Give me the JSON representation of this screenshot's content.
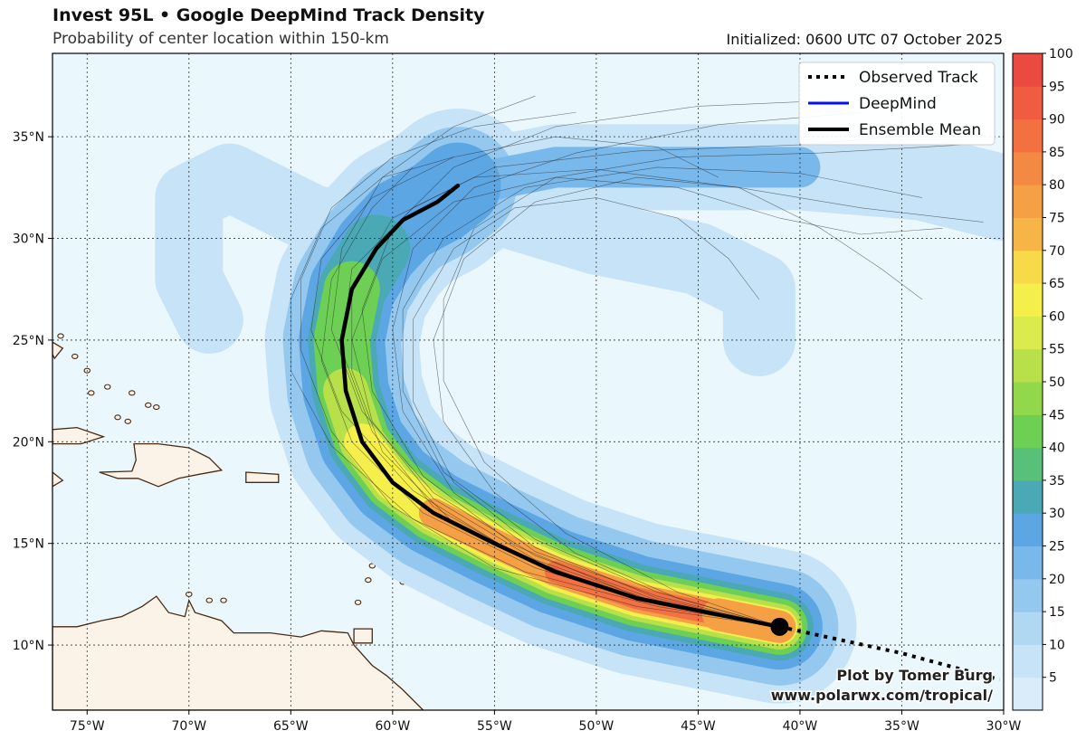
{
  "header": {
    "title": "Invest 95L • Google DeepMind Track Density",
    "subtitle": "Probability of center location within 150-km",
    "initialized": "Initialized: 0600 UTC 07 October 2025"
  },
  "legend": {
    "observed": "Observed Track",
    "deepmind": "DeepMind",
    "ensemble": "Ensemble Mean"
  },
  "credit": {
    "line1": "Plot by Tomer Burg",
    "line2": "www.polarwx.com/tropical/"
  },
  "colors": {
    "ocean": "#eaf7fc",
    "land": "#fbf3e7",
    "coast": "#4a2a12",
    "deepmind": "#0010ff",
    "ensemble": "#000000"
  },
  "map": {
    "lon_range": [
      -76.7,
      -30
    ],
    "lat_range": [
      6.8,
      39.1
    ],
    "lon_ticks": [
      {
        "value": -75,
        "label": "75°W"
      },
      {
        "value": -70,
        "label": "70°W"
      },
      {
        "value": -65,
        "label": "65°W"
      },
      {
        "value": -60,
        "label": "60°W"
      },
      {
        "value": -55,
        "label": "55°W"
      },
      {
        "value": -50,
        "label": "50°W"
      },
      {
        "value": -45,
        "label": "45°W"
      },
      {
        "value": -40,
        "label": "40°W"
      },
      {
        "value": -35,
        "label": "35°W"
      },
      {
        "value": -30,
        "label": "30°W"
      }
    ],
    "lat_ticks": [
      {
        "value": 10,
        "label": "10°N"
      },
      {
        "value": 15,
        "label": "15°N"
      },
      {
        "value": 20,
        "label": "20°N"
      },
      {
        "value": 25,
        "label": "25°N"
      },
      {
        "value": 30,
        "label": "30°N"
      },
      {
        "value": 35,
        "label": "35°N"
      }
    ]
  },
  "colorbar": {
    "levels": [
      "5",
      "10",
      "15",
      "20",
      "25",
      "30",
      "35",
      "40",
      "45",
      "50",
      "55",
      "60",
      "65",
      "70",
      "75",
      "80",
      "85",
      "90",
      "95",
      "100"
    ],
    "colors": [
      "#d8ecfa",
      "#c6e3f7",
      "#b0d8f3",
      "#94c8ef",
      "#79b8ea",
      "#5da6e4",
      "#4aa9b4",
      "#59c07a",
      "#6ecf55",
      "#93d84a",
      "#b8e04a",
      "#dbea4c",
      "#f4ef4b",
      "#f7d94a",
      "#f7b548",
      "#f5a045",
      "#f48944",
      "#f27042",
      "#ef5c41",
      "#ea4a40"
    ]
  },
  "tracks": {
    "observed": [
      [
        -41,
        10.9
      ],
      [
        -35,
        9.6
      ],
      [
        -30.2,
        8.3
      ]
    ],
    "ensemble_mean": [
      [
        -41,
        10.9
      ],
      [
        -44,
        11.5
      ],
      [
        -48,
        12.3
      ],
      [
        -52,
        13.6
      ],
      [
        -55,
        15.0
      ],
      [
        -58,
        16.5
      ],
      [
        -60,
        18.0
      ],
      [
        -61.5,
        20.0
      ],
      [
        -62.3,
        22.5
      ],
      [
        -62.5,
        25.0
      ],
      [
        -62.0,
        27.5
      ],
      [
        -60.8,
        29.5
      ],
      [
        -59.5,
        30.9
      ],
      [
        -57.8,
        31.8
      ],
      [
        -56.8,
        32.6
      ]
    ],
    "members": [
      [
        [
          -41,
          10.9
        ],
        [
          -47,
          12.0
        ],
        [
          -53,
          14.0
        ],
        [
          -58,
          16.8
        ],
        [
          -61,
          20.5
        ],
        [
          -62.5,
          24.5
        ],
        [
          -62,
          28.5
        ],
        [
          -59,
          31.5
        ],
        [
          -55,
          33.5
        ],
        [
          -48,
          34.3
        ],
        [
          -40,
          34.6
        ],
        [
          -33,
          35.2
        ]
      ],
      [
        [
          -41,
          10.9
        ],
        [
          -47,
          12.4
        ],
        [
          -53,
          14.6
        ],
        [
          -57,
          17.5
        ],
        [
          -59.5,
          21.5
        ],
        [
          -60,
          25.5
        ],
        [
          -59,
          29.5
        ],
        [
          -56,
          32.5
        ],
        [
          -51,
          34.2
        ],
        [
          -44,
          35.6
        ],
        [
          -37,
          36.2
        ]
      ],
      [
        [
          -41,
          10.9
        ],
        [
          -48,
          12.2
        ],
        [
          -54,
          14.5
        ],
        [
          -59,
          17.6
        ],
        [
          -62.5,
          21.5
        ],
        [
          -64,
          25.5
        ],
        [
          -63.5,
          29
        ],
        [
          -61,
          32
        ],
        [
          -57,
          34
        ],
        [
          -52,
          35
        ],
        [
          -47,
          34.5
        ],
        [
          -44,
          33
        ]
      ],
      [
        [
          -41,
          10.9
        ],
        [
          -46,
          11.8
        ],
        [
          -52,
          13.5
        ],
        [
          -57,
          16
        ],
        [
          -60.5,
          19.5
        ],
        [
          -62,
          23.5
        ],
        [
          -62,
          27.5
        ],
        [
          -60,
          31
        ],
        [
          -56,
          33
        ],
        [
          -50,
          33.4
        ],
        [
          -43,
          32.5
        ],
        [
          -37,
          31.5
        ],
        [
          -31,
          30.8
        ]
      ],
      [
        [
          -41,
          10.9
        ],
        [
          -47,
          12.1
        ],
        [
          -53,
          14.2
        ],
        [
          -58,
          17.2
        ],
        [
          -61,
          21
        ],
        [
          -62,
          25
        ],
        [
          -60.5,
          29
        ],
        [
          -57,
          31.8
        ],
        [
          -52,
          33
        ],
        [
          -46,
          32.5
        ],
        [
          -41,
          31
        ],
        [
          -37,
          30.2
        ],
        [
          -33,
          30.5
        ]
      ],
      [
        [
          -41,
          10.9
        ],
        [
          -47,
          12.6
        ],
        [
          -53,
          15.2
        ],
        [
          -57.5,
          18.5
        ],
        [
          -59.5,
          22.5
        ],
        [
          -59.5,
          26.5
        ],
        [
          -57.5,
          30
        ],
        [
          -53.5,
          32.5
        ],
        [
          -47,
          33.5
        ],
        [
          -40,
          33.2
        ],
        [
          -34,
          32
        ]
      ],
      [
        [
          -41,
          10.9
        ],
        [
          -48,
          11.9
        ],
        [
          -55,
          13.8
        ],
        [
          -60,
          16.8
        ],
        [
          -63,
          20.5
        ],
        [
          -64.5,
          24.5
        ],
        [
          -64.5,
          28
        ],
        [
          -63,
          31.5
        ],
        [
          -60,
          34
        ],
        [
          -56,
          35.5
        ],
        [
          -51,
          36.2
        ]
      ],
      [
        [
          -41,
          10.9
        ],
        [
          -46,
          12.3
        ],
        [
          -51,
          14.5
        ],
        [
          -55,
          17.5
        ],
        [
          -57.5,
          21
        ],
        [
          -58,
          25
        ],
        [
          -56.5,
          29
        ],
        [
          -53,
          31.8
        ],
        [
          -48,
          33
        ],
        [
          -43,
          32.5
        ],
        [
          -39,
          30.5
        ],
        [
          -36,
          28.5
        ],
        [
          -34,
          27
        ]
      ],
      [
        [
          -41,
          10.9
        ],
        [
          -47,
          12.0
        ],
        [
          -53,
          13.8
        ],
        [
          -58.5,
          16.5
        ],
        [
          -62,
          20
        ],
        [
          -63.5,
          24
        ],
        [
          -63,
          28
        ],
        [
          -61,
          31.5
        ],
        [
          -59,
          33.5
        ]
      ],
      [
        [
          -41,
          10.9
        ],
        [
          -47,
          12.3
        ],
        [
          -53,
          14.8
        ],
        [
          -57,
          18
        ],
        [
          -59,
          22
        ],
        [
          -59,
          26
        ],
        [
          -57,
          29.5
        ],
        [
          -54,
          31.5
        ],
        [
          -50,
          32
        ],
        [
          -46,
          31
        ],
        [
          -43.5,
          29
        ],
        [
          -42,
          27
        ]
      ],
      [
        [
          -41,
          10.9
        ],
        [
          -48,
          12.4
        ],
        [
          -54,
          14.9
        ],
        [
          -58.5,
          18.3
        ],
        [
          -61,
          22.5
        ],
        [
          -61.5,
          26.5
        ],
        [
          -60,
          30.5
        ],
        [
          -57,
          33.5
        ],
        [
          -52,
          35.5
        ],
        [
          -45,
          36.5
        ],
        [
          -38,
          36.8
        ]
      ],
      [
        [
          -41,
          10.9
        ],
        [
          -47,
          12.2
        ],
        [
          -53,
          14.4
        ],
        [
          -58,
          17.5
        ],
        [
          -61.5,
          21.5
        ],
        [
          -63,
          25.5
        ],
        [
          -62.5,
          29.5
        ],
        [
          -60.5,
          33
        ],
        [
          -57,
          35.5
        ],
        [
          -53,
          37
        ]
      ],
      [
        [
          -41,
          10.9
        ],
        [
          -46,
          12.6
        ],
        [
          -51.5,
          15.5
        ],
        [
          -55.5,
          19
        ],
        [
          -57.5,
          23
        ],
        [
          -57.5,
          27
        ],
        [
          -56,
          30.5
        ],
        [
          -52,
          33
        ],
        [
          -46,
          34
        ],
        [
          -39,
          34.2
        ],
        [
          -32,
          34.6
        ]
      ],
      [
        [
          -41,
          10.9
        ],
        [
          -47,
          11.9
        ],
        [
          -53.5,
          13.6
        ],
        [
          -59,
          16.2
        ],
        [
          -63,
          19.8
        ],
        [
          -65,
          23.5
        ],
        [
          -65,
          27
        ],
        [
          -63.5,
          30.5
        ],
        [
          -60.5,
          33
        ],
        [
          -57,
          34
        ]
      ]
    ],
    "start_point": [
      -41,
      10.9
    ]
  },
  "density": {
    "core": [
      [
        -41,
        10.9
      ],
      [
        -44,
        11.5
      ],
      [
        -48,
        12.3
      ],
      [
        -52,
        13.6
      ],
      [
        -55,
        15.0
      ],
      [
        -58,
        16.5
      ],
      [
        -60,
        18.0
      ],
      [
        -61.5,
        20.0
      ],
      [
        -62.3,
        22.5
      ],
      [
        -62.5,
        25.0
      ],
      [
        -62.0,
        27.5
      ],
      [
        -60.8,
        29.5
      ],
      [
        -59.5,
        30.9
      ],
      [
        -57.8,
        31.8
      ],
      [
        -56.8,
        32.6
      ]
    ],
    "outer_east": [
      [
        -57,
        32.5
      ],
      [
        -52,
        33.5
      ],
      [
        -46,
        33.5
      ],
      [
        -40,
        33.5
      ],
      [
        -34,
        33
      ],
      [
        -30,
        32
      ]
    ],
    "outer_south": [
      [
        -55,
        31.5
      ],
      [
        -50,
        30
      ],
      [
        -45,
        29
      ],
      [
        -42,
        27.5
      ],
      [
        -42,
        25
      ]
    ],
    "outer_west": [
      [
        -60,
        30
      ],
      [
        -64,
        31
      ],
      [
        -68,
        33
      ],
      [
        -70,
        32
      ],
      [
        -70,
        28
      ],
      [
        -69,
        26
      ]
    ]
  }
}
